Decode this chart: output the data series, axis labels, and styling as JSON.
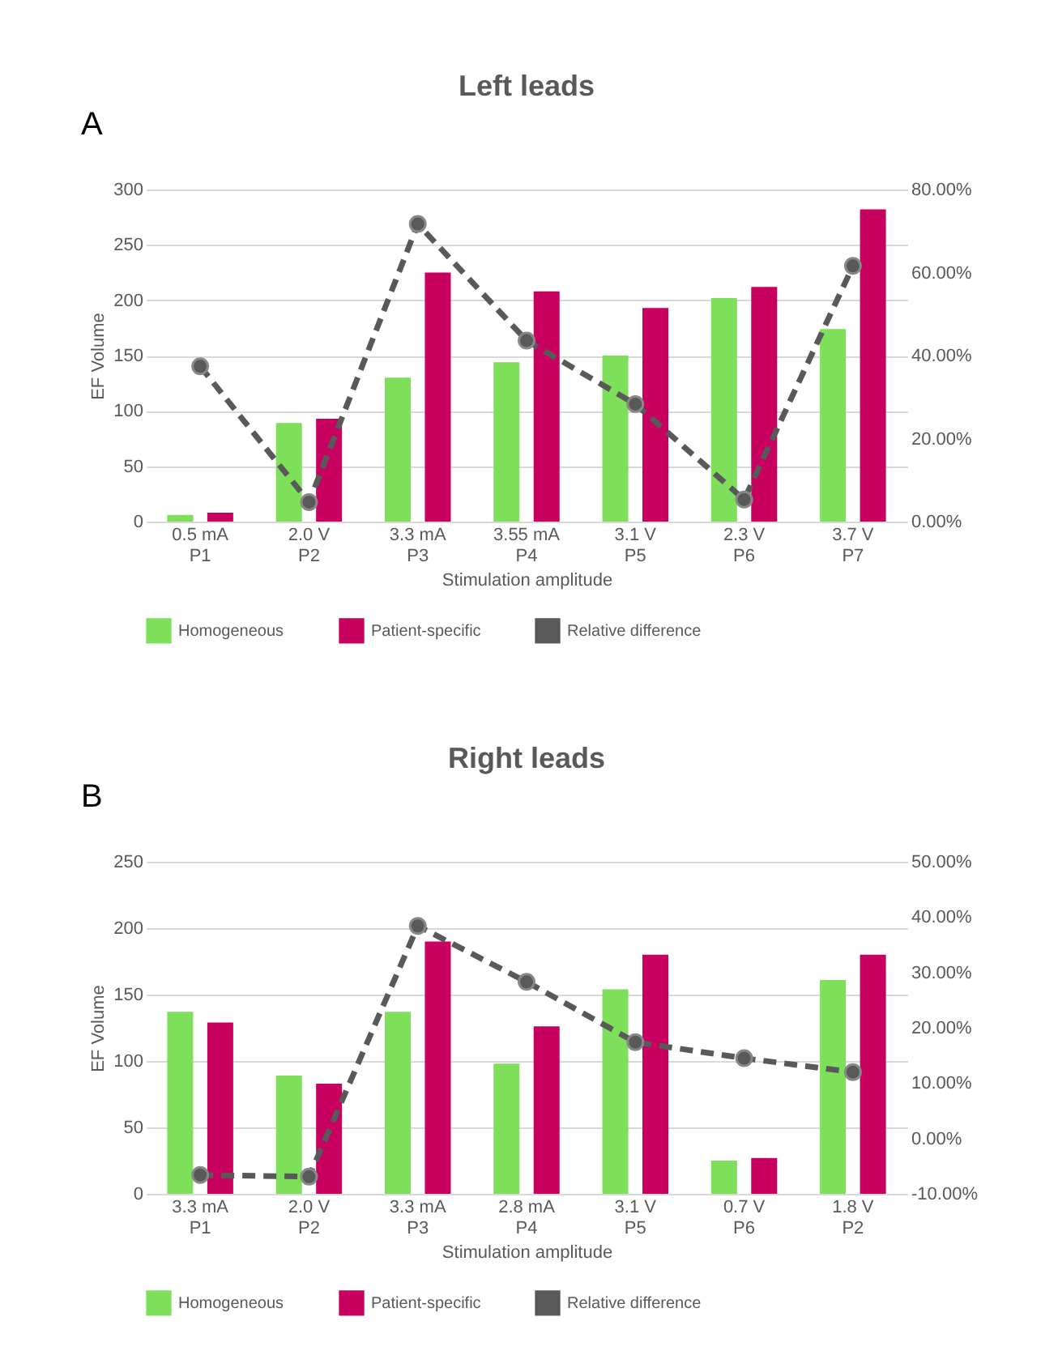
{
  "chart_data": [
    {
      "type": "bar",
      "title": "Left leads",
      "annotations": [
        "A"
      ],
      "xlabel": "Stimulation amplitude",
      "ylabel": "EF Volume",
      "categories": [
        "0.5 mA\nP1",
        "2.0 V\nP2",
        "3.3 mA\nP3",
        "3.55 mA\nP4",
        "3.1 V\nP5",
        "2.3 V\nP6",
        "3.7 V\nP7"
      ],
      "series": [
        {
          "name": "Homogeneous",
          "color": "#7ee05a",
          "values": [
            6,
            89,
            130,
            144,
            150,
            202,
            174
          ]
        },
        {
          "name": "Patient-specific",
          "color": "#c8005f",
          "values": [
            8,
            93,
            225,
            208,
            193,
            212,
            282
          ]
        },
        {
          "name": "Relative difference",
          "type": "line",
          "axis": "y2",
          "color": "#595959",
          "marker": "circle",
          "line_style": "dashed",
          "values": [
            37.4,
            4.7,
            71.7,
            43.6,
            28.3,
            5.3,
            61.6
          ]
        }
      ],
      "ylim": [
        0,
        300
      ],
      "yticks": [
        0,
        50,
        100,
        150,
        200,
        250,
        300
      ],
      "y2lim": [
        0,
        80
      ],
      "y2ticks": [
        {
          "value": 0,
          "label": "0.00%"
        },
        {
          "value": 20,
          "label": "20.00%"
        },
        {
          "value": 40,
          "label": "40.00%"
        },
        {
          "value": 60,
          "label": "60.00%"
        },
        {
          "value": 80,
          "label": "80.00%"
        }
      ],
      "grid": "y",
      "legend": "bottom"
    },
    {
      "type": "bar",
      "title": "Right leads",
      "annotations": [
        "B"
      ],
      "xlabel": "Stimulation amplitude",
      "ylabel": "EF Volume",
      "categories": [
        "3.3 mA\nP1",
        "2.0 V\nP2",
        "3.3 mA\nP3",
        "2.8 mA\nP4",
        "3.1 V\nP5",
        "0.7 V\nP6",
        "1.8 V\nP2"
      ],
      "series": [
        {
          "name": "Homogeneous",
          "color": "#7ee05a",
          "values": [
            137,
            89,
            137,
            98,
            154,
            25,
            161
          ]
        },
        {
          "name": "Patient-specific",
          "color": "#c8005f",
          "values": [
            129,
            83,
            190,
            126,
            180,
            27,
            180
          ]
        },
        {
          "name": "Relative difference",
          "type": "line",
          "axis": "y2",
          "color": "#595959",
          "marker": "circle",
          "line_style": "dashed",
          "values": [
            -6.6,
            -6.9,
            38.4,
            28.3,
            17.4,
            14.5,
            12.0
          ]
        }
      ],
      "ylim": [
        0,
        250
      ],
      "yticks": [
        0,
        50,
        100,
        150,
        200,
        250
      ],
      "y2lim": [
        -10,
        50
      ],
      "y2ticks": [
        {
          "value": -10,
          "label": "-10.00%"
        },
        {
          "value": 0,
          "label": "0.00%"
        },
        {
          "value": 10,
          "label": "10.00%"
        },
        {
          "value": 20,
          "label": "20.00%"
        },
        {
          "value": 30,
          "label": "30.00%"
        },
        {
          "value": 40,
          "label": "40.00%"
        },
        {
          "value": 50,
          "label": "50.00%"
        }
      ],
      "grid": "y",
      "legend": "bottom"
    }
  ]
}
